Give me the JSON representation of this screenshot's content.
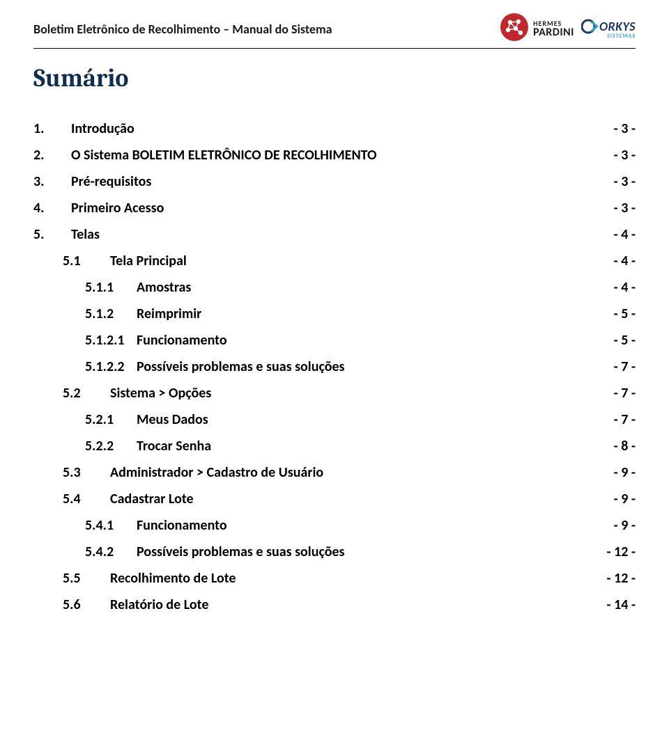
{
  "header": {
    "title": "Boletim Eletrônico de Recolhimento – Manual do Sistema"
  },
  "logos": {
    "pardini_top": "HERMES",
    "pardini_bottom": "PARDINI",
    "orkys_top": "ORKYS",
    "orkys_bottom": "SISTEMAS"
  },
  "sumario_title": "Sumário",
  "toc": [
    {
      "indent": 0,
      "num": "1.",
      "label": "Introdução",
      "page": "- 3 -"
    },
    {
      "indent": 0,
      "num": "2.",
      "label": "O Sistema BOLETIM ELETRÔNICO DE RECOLHIMENTO",
      "page": "- 3 -"
    },
    {
      "indent": 0,
      "num": "3.",
      "label": "Pré-requisitos",
      "page": "- 3 -"
    },
    {
      "indent": 0,
      "num": "4.",
      "label": "Primeiro Acesso",
      "page": "- 3 -"
    },
    {
      "indent": 0,
      "num": "5.",
      "label": "Telas",
      "page": "- 4 -"
    },
    {
      "indent": 1,
      "num": "5.1",
      "label": "Tela Principal",
      "page": "- 4 -"
    },
    {
      "indent": 2,
      "num": "5.1.1",
      "label": "Amostras",
      "page": "- 4 -"
    },
    {
      "indent": 2,
      "num": "5.1.2",
      "label": "Reimprimir",
      "page": "- 5 -"
    },
    {
      "indent": 2,
      "num": "5.1.2.1",
      "label": "Funcionamento",
      "page": "- 5 -"
    },
    {
      "indent": 2,
      "num": "5.1.2.2",
      "label": "Possíveis problemas e suas soluções",
      "page": "- 7 -"
    },
    {
      "indent": 1,
      "num": "5.2",
      "label": "Sistema > Opções",
      "page": "- 7 -"
    },
    {
      "indent": 2,
      "num": "5.2.1",
      "label": "Meus Dados",
      "page": "- 7 -"
    },
    {
      "indent": 2,
      "num": "5.2.2",
      "label": "Trocar Senha",
      "page": "- 8 -"
    },
    {
      "indent": 1,
      "num": "5.3",
      "label": "Administrador > Cadastro de Usuário",
      "page": "- 9 -"
    },
    {
      "indent": 1,
      "num": "5.4",
      "label": "Cadastrar Lote",
      "page": "- 9 -"
    },
    {
      "indent": 2,
      "num": "5.4.1",
      "label": "Funcionamento",
      "page": "- 9 -"
    },
    {
      "indent": 2,
      "num": "5.4.2",
      "label": "Possíveis problemas e suas soluções",
      "page": "- 12 -"
    },
    {
      "indent": 1,
      "num": "5.5",
      "label": "Recolhimento de Lote",
      "page": "- 12 -"
    },
    {
      "indent": 1,
      "num": "5.6",
      "label": "Relatório de Lote",
      "page": "- 14 -"
    }
  ],
  "colors": {
    "sumario": "#0e2d50",
    "text": "#000000",
    "pardini_red": "#c1272d",
    "pardini_black": "#1a1a1a",
    "orkys_blue": "#1b3764",
    "orkys_cyan": "#3aa5d1"
  }
}
